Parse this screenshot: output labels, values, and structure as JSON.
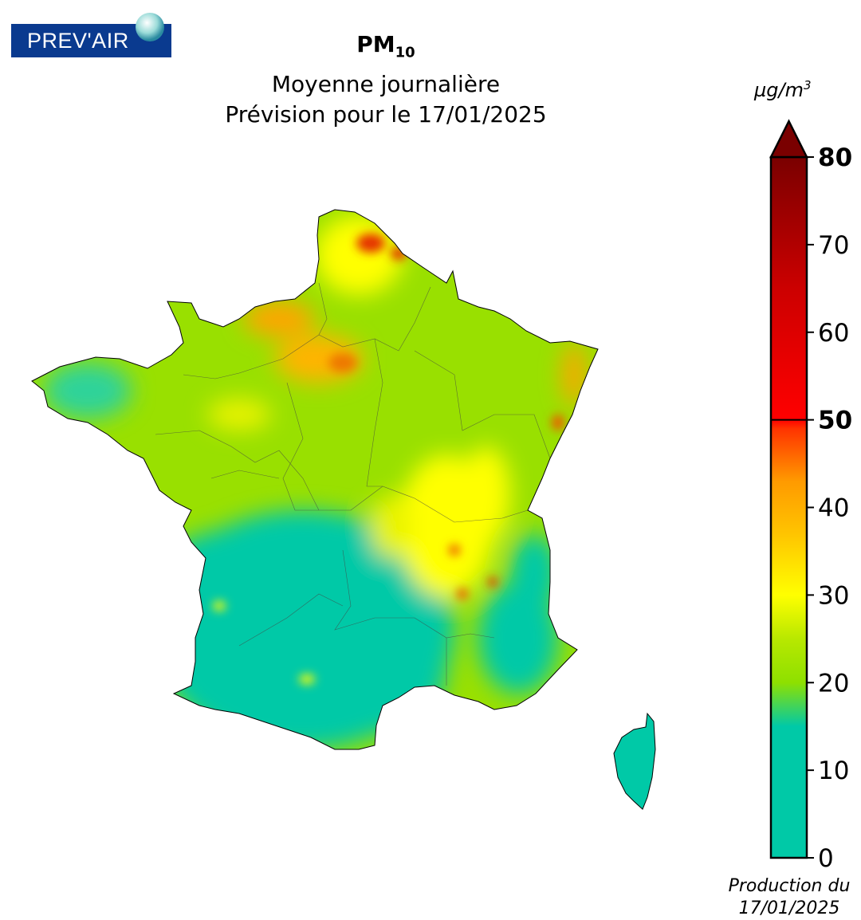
{
  "logo": {
    "text": "PREV'AIR"
  },
  "title": {
    "pollutant": "PM",
    "pollutant_sub": "10",
    "line2": "Moyenne journalière",
    "line3": "Prévision pour le 17/01/2025"
  },
  "colorbar": {
    "unit_base": "µg/m",
    "unit_exp": "3",
    "ticks": [
      "0",
      "10",
      "20",
      "30",
      "40",
      "50",
      "60",
      "70",
      "80"
    ],
    "bold_ticks": [
      "50",
      "80"
    ],
    "range": [
      0,
      80
    ],
    "threshold": 50,
    "colors": {
      "0": "#00c9a7",
      "15": "#00c9a7",
      "20": "#8ee000",
      "25": "#b8e800",
      "30": "#ffff00",
      "37": "#ffc400",
      "43": "#ff9a00",
      "49": "#ff3300",
      "50": "#ff0000",
      "65": "#cc0000",
      "80": "#7a0000"
    }
  },
  "production": {
    "line1": "Production du",
    "line2": "17/01/2025"
  },
  "map_colors": {
    "low": "#00c9a7",
    "moderate": "#99e000",
    "medium": "#ffff00",
    "high": "#ffa500",
    "very_high": "#e53000"
  }
}
